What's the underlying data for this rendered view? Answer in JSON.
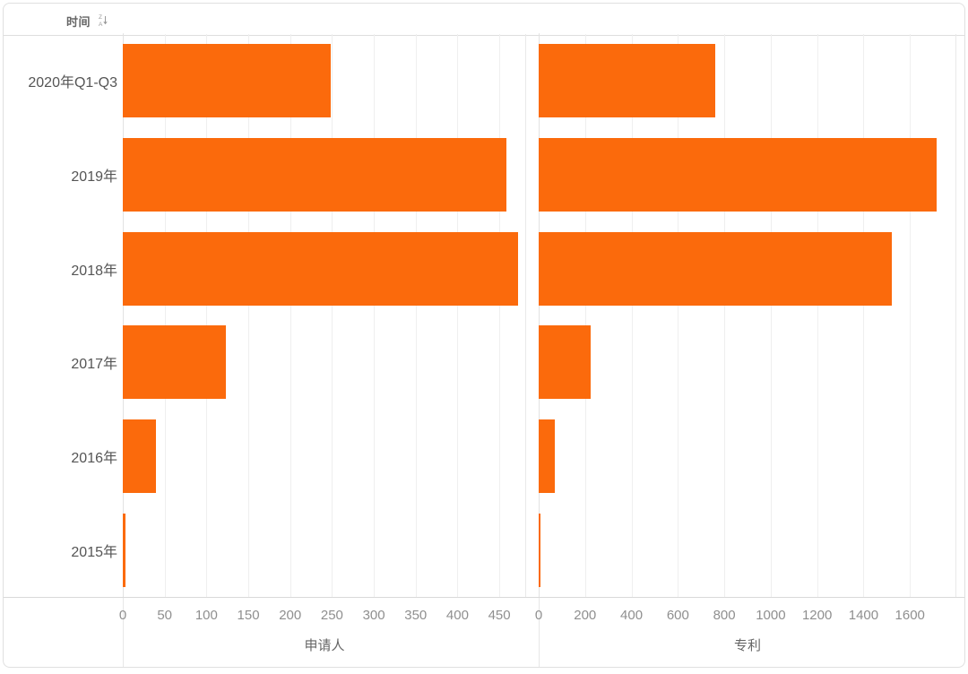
{
  "header": {
    "title": "时间",
    "sort_icon": "sort-za-icon"
  },
  "categories": [
    "2020年Q1-Q3",
    "2019年",
    "2018年",
    "2017年",
    "2016年",
    "2015年"
  ],
  "chart_data": [
    {
      "type": "bar",
      "orientation": "horizontal",
      "title": "申请人",
      "xlabel": "申请人",
      "categories": [
        "2020年Q1-Q3",
        "2019年",
        "2018年",
        "2017年",
        "2016年",
        "2015年"
      ],
      "values": [
        248,
        458,
        472,
        123,
        40,
        3
      ],
      "xlim": [
        0,
        482
      ],
      "ticks": [
        0,
        50,
        100,
        150,
        200,
        250,
        300,
        350,
        400,
        450
      ],
      "grid": true,
      "legend": "none",
      "bar_color": "#fb6a0c"
    },
    {
      "type": "bar",
      "orientation": "horizontal",
      "title": "专利",
      "xlabel": "专利",
      "categories": [
        "2020年Q1-Q3",
        "2019年",
        "2018年",
        "2017年",
        "2016年",
        "2015年"
      ],
      "values": [
        760,
        1715,
        1520,
        225,
        70,
        7
      ],
      "xlim": [
        0,
        1800
      ],
      "ticks": [
        0,
        200,
        400,
        600,
        800,
        1000,
        1200,
        1400,
        1600
      ],
      "grid": true,
      "legend": "none",
      "bar_color": "#fb6a0c"
    }
  ],
  "colors": {
    "bar": "#fb6a0c",
    "grid": "#efefef",
    "axis_line": "#d9d9d9",
    "tick_text": "#8f8f8f",
    "category_text": "#555555",
    "header_text": "#666666",
    "card_border": "#e0e0e0"
  }
}
